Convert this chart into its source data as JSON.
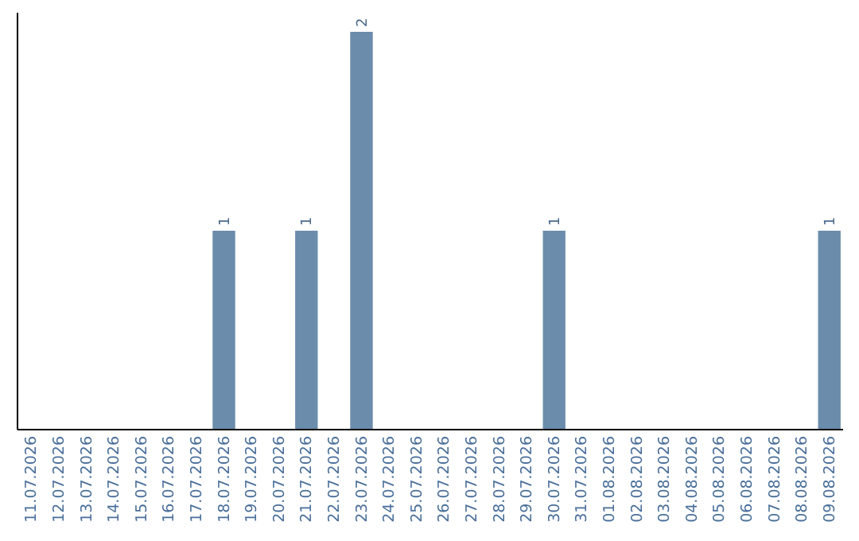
{
  "chart_data": {
    "type": "bar",
    "categories": [
      "11.07.2026",
      "12.07.2026",
      "13.07.2026",
      "14.07.2026",
      "15.07.2026",
      "16.07.2026",
      "17.07.2026",
      "18.07.2026",
      "19.07.2026",
      "20.07.2026",
      "21.07.2026",
      "22.07.2026",
      "23.07.2026",
      "24.07.2026",
      "25.07.2026",
      "26.07.2026",
      "27.07.2026",
      "28.07.2026",
      "29.07.2026",
      "30.07.2026",
      "31.07.2026",
      "01.08.2026",
      "02.08.2026",
      "03.08.2026",
      "04.08.2026",
      "05.08.2026",
      "06.08.2026",
      "07.08.2026",
      "08.08.2026",
      "09.08.2026"
    ],
    "values": [
      0,
      0,
      0,
      0,
      0,
      0,
      0,
      1,
      0,
      0,
      1,
      0,
      2,
      0,
      0,
      0,
      0,
      0,
      0,
      1,
      0,
      0,
      0,
      0,
      0,
      0,
      0,
      0,
      0,
      1
    ],
    "value_labels": [
      null,
      null,
      null,
      null,
      null,
      null,
      null,
      "1",
      null,
      null,
      "1",
      null,
      "2",
      null,
      null,
      null,
      null,
      null,
      null,
      "1",
      null,
      null,
      null,
      null,
      null,
      null,
      null,
      null,
      null,
      "1"
    ],
    "color": "#6b8cab",
    "ylim": [
      0,
      2
    ],
    "tick_labels": "x"
  }
}
